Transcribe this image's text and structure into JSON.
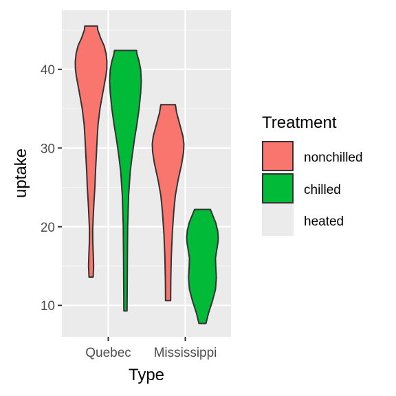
{
  "chart_data": {
    "type": "violin",
    "title": "",
    "xlabel": "Type",
    "ylabel": "uptake",
    "ylim": [
      6,
      47.5
    ],
    "yticks": [
      10,
      20,
      30,
      40
    ],
    "categories": [
      "Quebec",
      "Mississippi"
    ],
    "grid": true,
    "legend": {
      "title": "Treatment",
      "position": "right",
      "entries": [
        {
          "label": "nonchilled",
          "color": "#F8766D"
        },
        {
          "label": "chilled",
          "color": "#00BA38"
        },
        {
          "label": "heated",
          "color": "#EBEBEB"
        }
      ]
    },
    "series": [
      {
        "category": "Quebec",
        "treatment": "nonchilled",
        "color": "#F8766D",
        "min": 13.6,
        "max": 45.5,
        "profile": [
          [
            13.6,
            0.13
          ],
          [
            15,
            0.16
          ],
          [
            16.5,
            0.14
          ],
          [
            18,
            0.11
          ],
          [
            19.5,
            0.1
          ],
          [
            21,
            0.13
          ],
          [
            23,
            0.18
          ],
          [
            25,
            0.24
          ],
          [
            27,
            0.28
          ],
          [
            29,
            0.33
          ],
          [
            31,
            0.38
          ],
          [
            33,
            0.44
          ],
          [
            35,
            0.56
          ],
          [
            37,
            0.74
          ],
          [
            39,
            0.92
          ],
          [
            40,
            0.99
          ],
          [
            41,
            1.0
          ],
          [
            42,
            0.95
          ],
          [
            43,
            0.82
          ],
          [
            44,
            0.6
          ],
          [
            45,
            0.42
          ],
          [
            45.5,
            0.4
          ]
        ]
      },
      {
        "category": "Quebec",
        "treatment": "chilled",
        "color": "#00BA38",
        "min": 9.3,
        "max": 42.4,
        "profile": [
          [
            9.3,
            0.1
          ],
          [
            12,
            0.11
          ],
          [
            16,
            0.12
          ],
          [
            20,
            0.14
          ],
          [
            24,
            0.2
          ],
          [
            27,
            0.3
          ],
          [
            29,
            0.42
          ],
          [
            31,
            0.56
          ],
          [
            33,
            0.72
          ],
          [
            35,
            0.86
          ],
          [
            37,
            0.96
          ],
          [
            38.5,
            1.0
          ],
          [
            40,
            0.96
          ],
          [
            41,
            0.86
          ],
          [
            42,
            0.72
          ],
          [
            42.4,
            0.7
          ]
        ]
      },
      {
        "category": "Mississippi",
        "treatment": "nonchilled",
        "color": "#F8766D",
        "min": 10.6,
        "max": 35.5,
        "profile": [
          [
            10.6,
            0.16
          ],
          [
            13,
            0.17
          ],
          [
            16,
            0.2
          ],
          [
            19,
            0.26
          ],
          [
            22,
            0.36
          ],
          [
            24,
            0.46
          ],
          [
            26,
            0.64
          ],
          [
            28,
            0.86
          ],
          [
            29.5,
            0.98
          ],
          [
            30.5,
            1.0
          ],
          [
            31.5,
            0.94
          ],
          [
            33,
            0.74
          ],
          [
            34.5,
            0.54
          ],
          [
            35.5,
            0.46
          ]
        ]
      },
      {
        "category": "Mississippi",
        "treatment": "chilled",
        "color": "#00BA38",
        "min": 7.7,
        "max": 22.2,
        "profile": [
          [
            7.7,
            0.22
          ],
          [
            9,
            0.38
          ],
          [
            10.5,
            0.62
          ],
          [
            12,
            0.82
          ],
          [
            13.5,
            0.88
          ],
          [
            15,
            0.84
          ],
          [
            16,
            0.82
          ],
          [
            17,
            0.9
          ],
          [
            18,
            0.98
          ],
          [
            18.6,
            1.0
          ],
          [
            19.5,
            0.96
          ],
          [
            20.5,
            0.84
          ],
          [
            21.5,
            0.64
          ],
          [
            22.2,
            0.5
          ]
        ]
      }
    ]
  }
}
